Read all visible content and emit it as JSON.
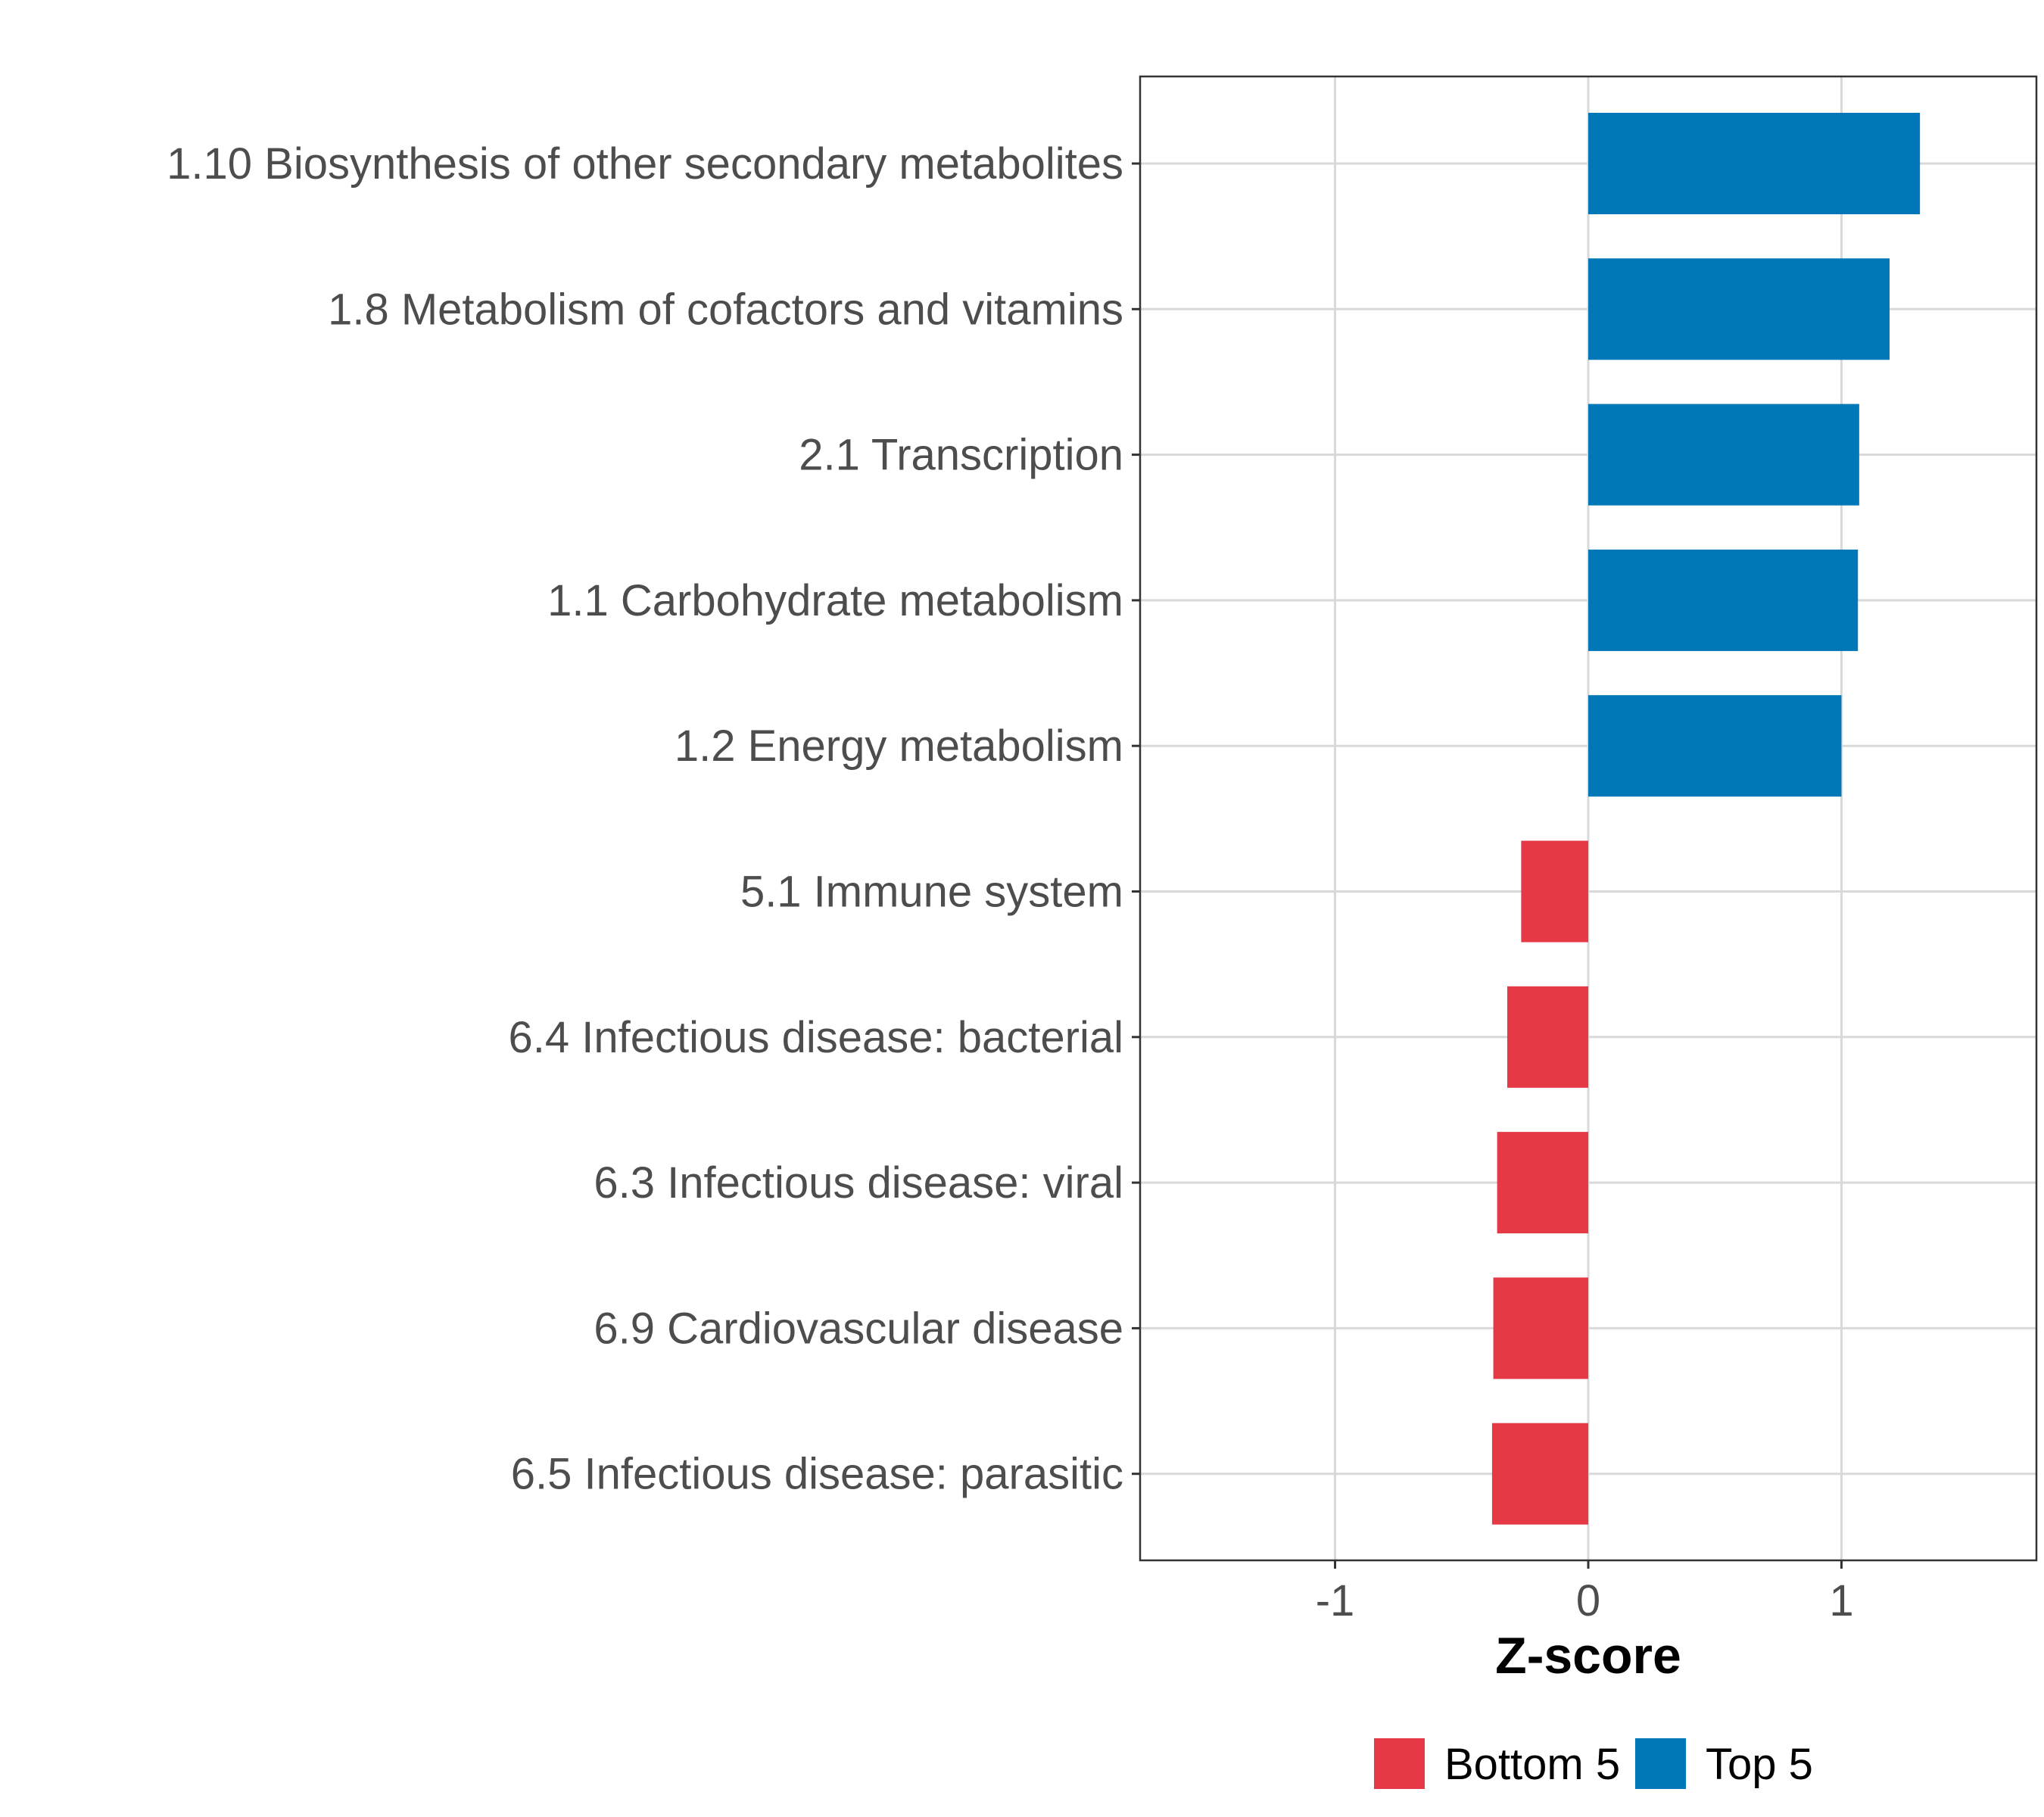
{
  "chart_data": {
    "type": "bar",
    "orientation": "horizontal",
    "title": "",
    "xlabel": "Z-score",
    "ylabel": "",
    "xlim": [
      -1.77,
      1.77
    ],
    "xticks": [
      -1,
      0,
      1
    ],
    "xtick_labels": [
      "-1",
      "0",
      "1"
    ],
    "grid": true,
    "legend_position": "bottom",
    "categories": [
      "1.10 Biosynthesis of other secondary metabolites",
      "1.8 Metabolism of cofactors and vitamins",
      "2.1 Transcription",
      "1.1 Carbohydrate metabolism",
      "1.2 Energy metabolism",
      "5.1 Immune system",
      "6.4 Infectious disease: bacterial",
      "6.3 Infectious disease: viral",
      "6.9 Cardiovascular disease",
      "6.5 Infectious disease: parasitic"
    ],
    "values": [
      1.31,
      1.19,
      1.07,
      1.065,
      1.0,
      -0.265,
      -0.32,
      -0.36,
      -0.375,
      -0.38
    ],
    "groups": [
      "Top 5",
      "Top 5",
      "Top 5",
      "Top 5",
      "Top 5",
      "Bottom 5",
      "Bottom 5",
      "Bottom 5",
      "Bottom 5",
      "Bottom 5"
    ],
    "legend": [
      {
        "name": "Bottom 5",
        "color": "#E63946"
      },
      {
        "name": "Top 5",
        "color": "#0077B6"
      }
    ]
  }
}
